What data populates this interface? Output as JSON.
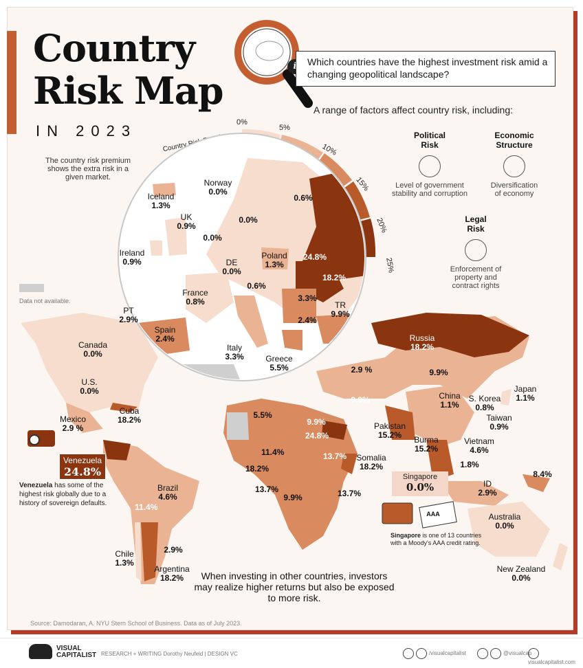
{
  "title_line1": "Country",
  "title_line2": "Risk Map",
  "title_year": "IN 2023",
  "question": "Which countries have the highest investment risk amid a changing geopolitical landscape?",
  "factors_intro": "A range of factors affect country risk, including:",
  "factors": [
    {
      "head1": "Political",
      "head2": "Risk",
      "desc1": "Level of government",
      "desc2": "stability and corruption"
    },
    {
      "head1": "Economic",
      "head2": "Structure",
      "desc1": "Diversification",
      "desc2": "of economy"
    },
    {
      "head1": "Legal",
      "head2": "Risk",
      "desc1": "Enforcement of",
      "desc2": "property and",
      "desc3": "contract rights"
    }
  ],
  "premium_note": "The country risk premium shows the extra risk in a given market.",
  "crp_label": "Country Risk Premium",
  "arc_ticks": [
    "0%",
    "5%",
    "10%",
    "15%",
    "20%",
    "25%"
  ],
  "data_not_available": "Data not available.",
  "colors": {
    "c0": "#f6ddcd",
    "c1": "#eab494",
    "c2": "#d98a5e",
    "c3": "#b85a2a",
    "c4": "#8a3410",
    "na": "#cfcfcf",
    "water": "#ffffff",
    "accent": "#c45e30"
  },
  "europe_labels": [
    {
      "name": "Norway",
      "value": "0.0%"
    },
    {
      "name": "Iceland",
      "value": "1.3%"
    },
    {
      "name": "UK",
      "value": "0.9%"
    },
    {
      "name": "Ireland",
      "value": "0.9%"
    },
    {
      "name": "DE",
      "value": "0.0%"
    },
    {
      "name": "France",
      "value": "0.8%"
    },
    {
      "name": "PT",
      "value": "2.9%"
    },
    {
      "name": "Spain",
      "value": "2.4%"
    },
    {
      "name": "Italy",
      "value": "3.3%"
    },
    {
      "name": "Greece",
      "value": "5.5%"
    },
    {
      "name": "Poland",
      "value": "1.3%"
    },
    {
      "name": "TR",
      "value": "9.9%"
    }
  ],
  "europe_unlabeled_values": [
    "0.6%",
    "0.0%",
    "0.0%",
    "24.8%",
    "18.2%",
    "0.6%",
    "3.3%",
    "2.4%"
  ],
  "world_labels": [
    {
      "name": "Canada",
      "value": "0.0%"
    },
    {
      "name": "U.S.",
      "value": "0.0%"
    },
    {
      "name": "Cuba",
      "value": "18.2%"
    },
    {
      "name": "Mexico",
      "value": "2.9 %"
    },
    {
      "name": "Brazil",
      "value": "4.6%"
    },
    {
      "name": "Chile",
      "value": "1.3%"
    },
    {
      "name": "Argentina",
      "value": "18.2%"
    },
    {
      "name": "Russia",
      "value": "18.2%"
    },
    {
      "name": "China",
      "value": "1.1%"
    },
    {
      "name": "Japan",
      "value": "1.1%"
    },
    {
      "name": "S. Korea",
      "value": "0.8%"
    },
    {
      "name": "Taiwan",
      "value": "0.9%"
    },
    {
      "name": "Pakistan",
      "value": "15.2%"
    },
    {
      "name": "Burma",
      "value": "15.2%"
    },
    {
      "name": "Vietnam",
      "value": "4.6%"
    },
    {
      "name": "Somalia",
      "value": "18.2%"
    },
    {
      "name": "ID",
      "value": "2.9%"
    },
    {
      "name": "Australia",
      "value": "0.0%"
    },
    {
      "name": "New Zealand",
      "value": "0.0%"
    }
  ],
  "world_unlabeled_values": [
    "2.9 %",
    "9.9%",
    "9.9%",
    "5.5%",
    "9.9%",
    "24.8%",
    "11.4%",
    "13.7%",
    "18.2%",
    "13.7%",
    "9.9%",
    "13.7%",
    "11.4%",
    "2.9%",
    "1.8%",
    "8.4%"
  ],
  "venezuela": {
    "name": "Venezuela",
    "value": "24.8%"
  },
  "venezuela_note_bold": "Venezuela",
  "venezuela_note_rest": " has some of the highest risk globally due to a history of sovereign defaults.",
  "singapore": {
    "name": "Singapore",
    "value": "0.0%"
  },
  "singapore_note_bold": "Singapore",
  "singapore_note_rest": " is one of 13 countries with a Moody's AAA credit rating.",
  "aaa_badge": "AAA",
  "bottom_text": "When investing in other countries, investors may realize higher returns but also be exposed to more risk.",
  "source": "Source: Damodaran, A. NYU Stern School of Business. Data as of July 2023.",
  "footer": {
    "brand1": "VISUAL",
    "brand2": "CAPITALIST",
    "credits": "RESEARCH + WRITING  Dorothy Neufeld   |   DESIGN  VC",
    "social1": "/visualcapitalist",
    "social2": "@visualcap",
    "social3": "visualcapitalist.com"
  }
}
